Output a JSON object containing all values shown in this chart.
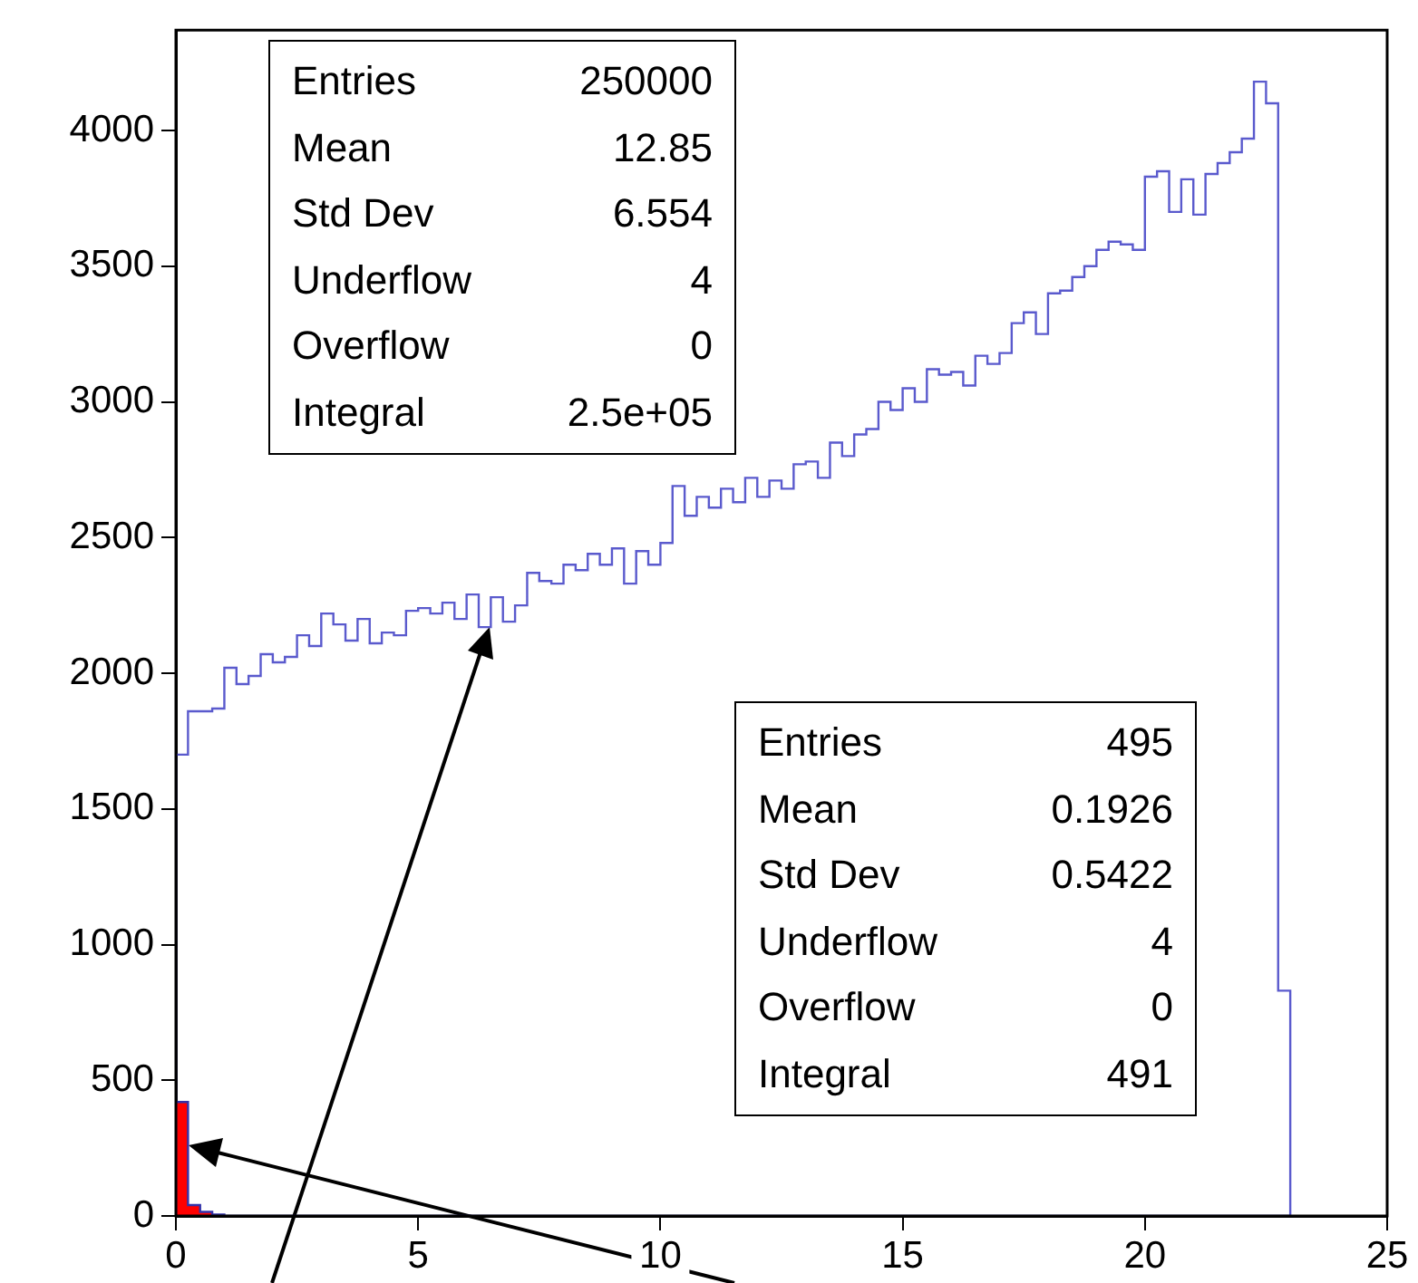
{
  "chart_data": {
    "type": "histogram",
    "bins": [
      0,
      0.25,
      0.5,
      0.75,
      1,
      1.25,
      1.5,
      1.75,
      2,
      2.25,
      2.5,
      2.75,
      3,
      3.25,
      3.5,
      3.75,
      4,
      4.25,
      4.5,
      4.75,
      5,
      5.25,
      5.5,
      5.75,
      6,
      6.25,
      6.5,
      6.75,
      7,
      7.25,
      7.5,
      7.75,
      8,
      8.25,
      8.5,
      8.75,
      9,
      9.25,
      9.5,
      9.75,
      10,
      10.25,
      10.5,
      10.75,
      11,
      11.25,
      11.5,
      11.75,
      12,
      12.25,
      12.5,
      12.75,
      13,
      13.25,
      13.5,
      13.75,
      14,
      14.25,
      14.5,
      14.75,
      15,
      15.25,
      15.5,
      15.75,
      16,
      16.25,
      16.5,
      16.75,
      17,
      17.25,
      17.5,
      17.75,
      18,
      18.25,
      18.5,
      18.75,
      19,
      19.25,
      19.5,
      19.75,
      20,
      20.25,
      20.5,
      20.75,
      21,
      21.25,
      21.5,
      21.75,
      22,
      22.25,
      22.5,
      22.75,
      23
    ],
    "series": [
      {
        "color": "#5a5acd",
        "values": [
          1700,
          1860,
          1860,
          1870,
          2020,
          1960,
          1990,
          2070,
          2040,
          2060,
          2140,
          2100,
          2220,
          2180,
          2120,
          2200,
          2110,
          2150,
          2140,
          2230,
          2240,
          2220,
          2260,
          2200,
          2290,
          2170,
          2280,
          2190,
          2250,
          2370,
          2340,
          2330,
          2400,
          2380,
          2440,
          2400,
          2460,
          2330,
          2450,
          2400,
          2480,
          2690,
          2580,
          2650,
          2610,
          2680,
          2630,
          2720,
          2650,
          2710,
          2680,
          2770,
          2780,
          2720,
          2850,
          2800,
          2880,
          2900,
          3000,
          2970,
          3050,
          3000,
          3120,
          3100,
          3110,
          3060,
          3170,
          3140,
          3180,
          3290,
          3330,
          3250,
          3400,
          3410,
          3460,
          3500,
          3560,
          3590,
          3580,
          3560,
          3830,
          3850,
          3700,
          3820,
          3690,
          3840,
          3880,
          3920,
          3970,
          4180,
          4100,
          830
        ]
      },
      {
        "color": "#ff0000",
        "values": [
          420,
          40,
          15,
          5,
          0,
          0,
          0,
          0,
          0,
          0,
          0,
          0,
          0,
          0,
          0,
          0,
          0,
          0,
          0,
          0,
          0,
          0,
          0,
          0,
          0,
          0,
          0,
          0,
          0,
          0,
          0,
          0,
          0,
          0,
          0,
          0,
          0,
          0,
          0,
          0,
          0,
          0,
          0,
          0,
          0,
          0,
          0,
          0,
          0,
          0,
          0,
          0,
          0,
          0,
          0,
          0,
          0,
          0,
          0,
          0,
          0,
          0,
          0,
          0,
          0,
          0,
          0,
          0,
          0,
          0,
          0,
          0,
          0,
          0,
          0,
          0,
          0,
          0,
          0,
          0,
          0,
          0,
          0,
          0,
          0,
          0,
          0,
          0,
          0,
          0,
          0,
          0
        ]
      }
    ],
    "xlim": [
      0,
      25
    ],
    "xticks": [
      0,
      5,
      10,
      15,
      20,
      25
    ],
    "ylim": [
      0,
      4370
    ],
    "yticks": [
      0,
      500,
      1000,
      1500,
      2000,
      2500,
      3000,
      3500,
      4000
    ],
    "annotations": [
      "Entries 250000",
      "Mean 12.85",
      "Std Dev 6.554",
      "Underflow 4",
      "Overflow 0",
      "Integral 2.5e+05",
      "Entries 495",
      "Mean 0.1926",
      "Std Dev 0.5422",
      "Underflow 4",
      "Overflow 0",
      "Integral 491"
    ],
    "grid": false,
    "legend": false
  }
}
